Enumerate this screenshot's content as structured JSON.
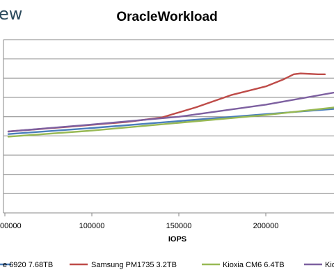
{
  "brand": {
    "logo_text": "ew"
  },
  "chart_data": {
    "type": "line",
    "title": "OracleWorkload",
    "xlabel": "IOPS",
    "ylabel": "",
    "x_ticks": [
      100000,
      150000,
      200000
    ],
    "x_tick_labels": [
      "100000",
      "150000",
      "200000"
    ],
    "partial_tick_label": "00000",
    "grid": true,
    "legend_position": "bottom",
    "series": [
      {
        "name": "e 6920 7.68TB",
        "color": "#4a7ebb",
        "points": [
          [
            52000,
            0.455
          ],
          [
            100000,
            0.49
          ],
          [
            150000,
            0.53
          ],
          [
            200000,
            0.57
          ],
          [
            245000,
            0.605
          ]
        ]
      },
      {
        "name": "Samsung PM1735 3.2TB",
        "color": "#be4b48",
        "points": [
          [
            52000,
            0.47
          ],
          [
            90000,
            0.5
          ],
          [
            120000,
            0.525
          ],
          [
            140000,
            0.55
          ],
          [
            160000,
            0.61
          ],
          [
            180000,
            0.68
          ],
          [
            200000,
            0.73
          ],
          [
            210000,
            0.77
          ],
          [
            216000,
            0.8
          ],
          [
            220000,
            0.805
          ],
          [
            230000,
            0.8
          ],
          [
            234000,
            0.8
          ]
        ]
      },
      {
        "name": "Kioxia CM6 6.4TB",
        "color": "#98b954",
        "points": [
          [
            52000,
            0.44
          ],
          [
            100000,
            0.475
          ],
          [
            150000,
            0.52
          ],
          [
            200000,
            0.565
          ],
          [
            245000,
            0.615
          ]
        ]
      },
      {
        "name": "Kio",
        "color": "#7d60a0",
        "points": [
          [
            52000,
            0.47
          ],
          [
            100000,
            0.51
          ],
          [
            150000,
            0.555
          ],
          [
            200000,
            0.625
          ],
          [
            245000,
            0.705
          ]
        ]
      }
    ]
  }
}
